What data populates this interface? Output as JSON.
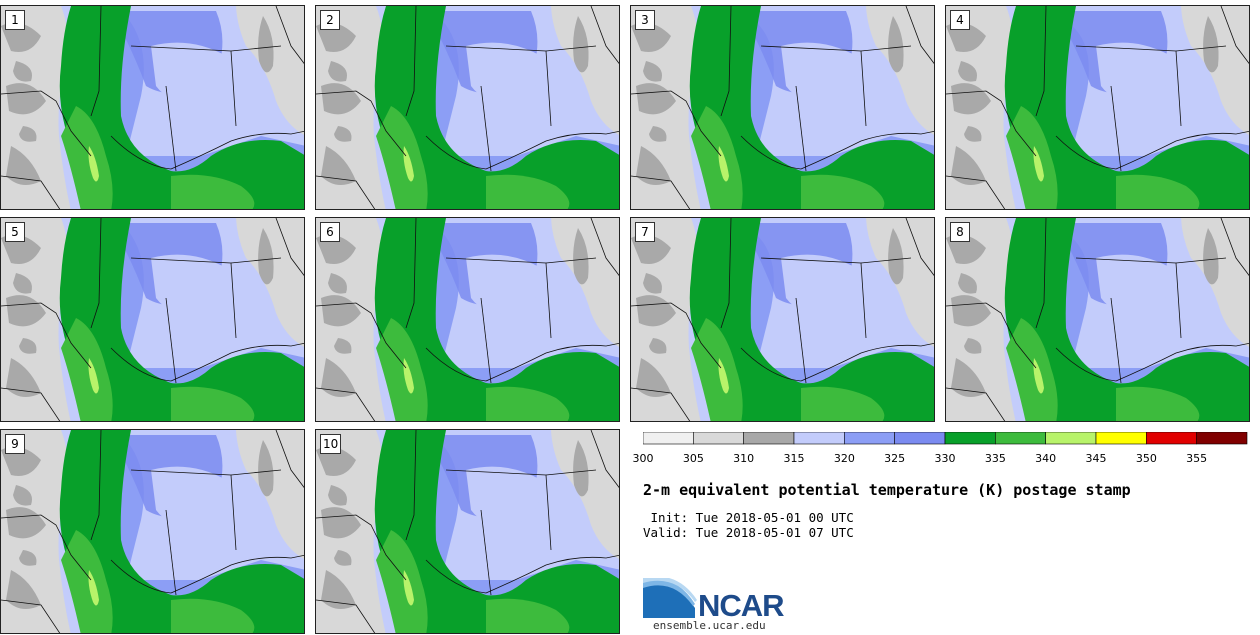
{
  "panels": [
    {
      "label": "1"
    },
    {
      "label": "2"
    },
    {
      "label": "3"
    },
    {
      "label": "4"
    },
    {
      "label": "5"
    },
    {
      "label": "6"
    },
    {
      "label": "7"
    },
    {
      "label": "8"
    },
    {
      "label": "9"
    },
    {
      "label": "10"
    }
  ],
  "colorbar": {
    "ticks": [
      "300",
      "305",
      "310",
      "315",
      "320",
      "325",
      "330",
      "335",
      "340",
      "345",
      "350",
      "355"
    ],
    "colors": [
      "#f0f0f0",
      "#d9d9d9",
      "#a8a8a8",
      "#c3ccfb",
      "#8c9ef5",
      "#7b8bf0",
      "#08a02a",
      "#3dbb3d",
      "#b8f36a",
      "#ffff00",
      "#e10000",
      "#800000"
    ]
  },
  "map_colors": {
    "cool_gray": "#a9a9a9",
    "light_gray": "#d8d8d8",
    "pale_blue": "#c3ccfb",
    "mid_blue": "#8c9ef5",
    "deep_blue": "#7b8bf0",
    "dark_green": "#08a02a",
    "light_green": "#3dbb3d",
    "lime": "#b8f36a"
  },
  "title": "2-m equivalent potential temperature (K) postage stamp",
  "init_line": " Init: Tue 2018-05-01 00 UTC",
  "valid_line": "Valid: Tue 2018-05-01 07 UTC",
  "logo": {
    "text": "NCAR",
    "url": "ensemble.ucar.edu",
    "icon": "ncar-swoosh-logo"
  }
}
